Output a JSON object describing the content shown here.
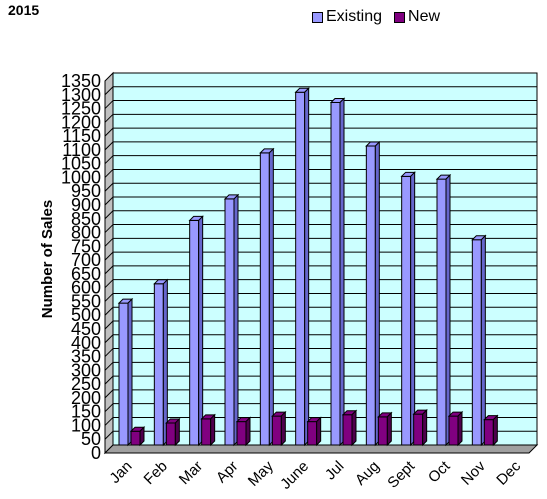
{
  "chart_data": {
    "type": "bar",
    "title": "2015",
    "xlabel": "",
    "ylabel": "Number of Sales",
    "categories": [
      "Jan",
      "Feb",
      "Mar",
      "Apr",
      "May",
      "June",
      "Jul",
      "Aug",
      "Sept",
      "Oct",
      "Nov",
      "Dec"
    ],
    "series": [
      {
        "name": "Existing",
        "values": [
          515,
          585,
          815,
          893,
          1060,
          1280,
          1243,
          1085,
          975,
          965,
          745,
          0
        ],
        "color": "#9999ff"
      },
      {
        "name": "New",
        "values": [
          50,
          80,
          95,
          85,
          105,
          85,
          110,
          102,
          112,
          105,
          92,
          0
        ],
        "color": "#800080"
      }
    ],
    "ylim": [
      0,
      1350
    ],
    "yticks": [
      "0",
      "50",
      "100",
      "150",
      "200",
      "250",
      "300",
      "350",
      "400",
      "450",
      "500",
      "550",
      "600",
      "650",
      "700",
      "750",
      "800",
      "850",
      "900",
      "950",
      "1000",
      "1050",
      "1100",
      "1150",
      "1200",
      "1250",
      "1300",
      "1350"
    ],
    "grid": true,
    "legend_position": "top-right",
    "plot_background": "#ccffff"
  }
}
